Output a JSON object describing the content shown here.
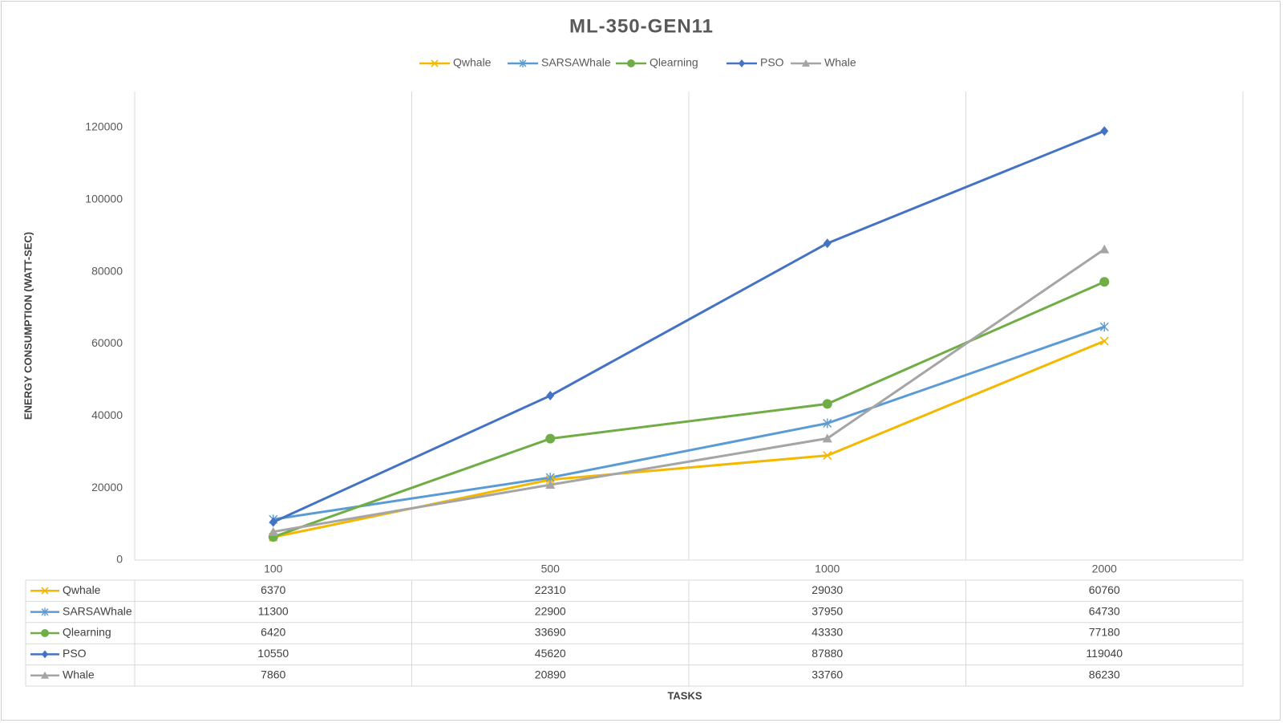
{
  "chart_data": {
    "type": "line",
    "title": "ML-350-GEN11",
    "xlabel": "TASKS",
    "ylabel": "ENERGY CONSUMPTION (WATT-SEC)",
    "categories": [
      "100",
      "500",
      "1000",
      "2000"
    ],
    "ylim": [
      0,
      130000
    ],
    "yticks": [
      0,
      20000,
      40000,
      60000,
      80000,
      100000,
      120000
    ],
    "grid": "vertical",
    "legend": "top-center",
    "data_table": true,
    "series": [
      {
        "name": "Qwhale",
        "color": "#f5b800",
        "marker": "x",
        "values": [
          6370,
          22310,
          29030,
          60760
        ]
      },
      {
        "name": "SARSAWhale",
        "color": "#5b9bd5",
        "marker": "star",
        "values": [
          11300,
          22900,
          37950,
          64730
        ]
      },
      {
        "name": "Qlearning",
        "color": "#70ad47",
        "marker": "circle",
        "values": [
          6420,
          33690,
          43330,
          77180
        ]
      },
      {
        "name": "PSO",
        "color": "#4472c4",
        "marker": "diamond",
        "values": [
          10550,
          45620,
          87880,
          119040
        ]
      },
      {
        "name": "Whale",
        "color": "#a5a5a5",
        "marker": "triangle",
        "values": [
          7860,
          20890,
          33760,
          86230
        ]
      }
    ]
  }
}
